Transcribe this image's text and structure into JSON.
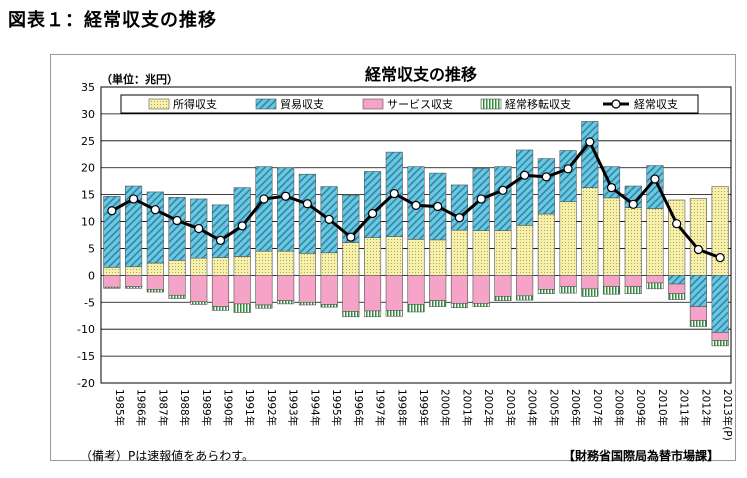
{
  "page": {
    "figure_title": "図表１：経常収支の推移",
    "note": "（備考）Pは速報値をあらわす。",
    "source": "【財務省国際局為替市場課】"
  },
  "chart_data": {
    "type": "bar",
    "title": "経常収支の推移",
    "unit_label": "（単位：兆円）",
    "xlabel": "",
    "ylabel": "",
    "ylim": [
      -20,
      35
    ],
    "yticks": [
      35,
      30,
      25,
      20,
      15,
      10,
      5,
      0,
      -5,
      -10,
      -15,
      -20
    ],
    "grid": true,
    "legend_position": "top",
    "categories": [
      "1985年",
      "1986年",
      "1987年",
      "1988年",
      "1989年",
      "1990年",
      "1991年",
      "1992年",
      "1993年",
      "1994年",
      "1995年",
      "1996年",
      "1997年",
      "1998年",
      "1999年",
      "2000年",
      "2001年",
      "2002年",
      "2003年",
      "2004年",
      "2005年",
      "2006年",
      "2007年",
      "2008年",
      "2009年",
      "2010年",
      "2011年",
      "2012年",
      "2013年(P)"
    ],
    "series": [
      {
        "name": "所得収支",
        "kind": "bar",
        "color": "#f6f0a8",
        "values": [
          1.5,
          1.6,
          2.3,
          2.8,
          3.2,
          3.3,
          3.5,
          4.5,
          4.5,
          4.1,
          4.2,
          6.1,
          7.0,
          7.2,
          6.7,
          6.6,
          8.4,
          8.3,
          8.3,
          9.3,
          11.4,
          13.7,
          16.3,
          14.4,
          12.6,
          12.4,
          14.0,
          14.3,
          16.5
        ]
      },
      {
        "name": "貿易収支",
        "kind": "bar",
        "color": "#6cc8dc",
        "values": [
          13.2,
          15.0,
          13.2,
          11.7,
          11.0,
          9.8,
          12.8,
          15.7,
          15.5,
          14.7,
          12.3,
          8.8,
          12.3,
          15.7,
          13.5,
          12.4,
          8.4,
          11.6,
          11.9,
          14.0,
          10.3,
          9.5,
          12.3,
          5.8,
          4.0,
          8.0,
          -1.6,
          -5.8,
          -10.6
        ]
      },
      {
        "name": "サービス収支",
        "kind": "bar",
        "color": "#f5a4c8",
        "values": [
          -2.2,
          -2.1,
          -2.6,
          -3.7,
          -4.9,
          -5.8,
          -5.3,
          -5.5,
          -4.7,
          -5.0,
          -5.4,
          -6.7,
          -6.6,
          -6.5,
          -5.4,
          -4.7,
          -5.2,
          -5.2,
          -3.9,
          -3.8,
          -2.6,
          -2.1,
          -2.5,
          -2.1,
          -2.1,
          -1.4,
          -1.8,
          -2.6,
          -1.5
        ]
      },
      {
        "name": "経常移転収支",
        "kind": "bar",
        "color": "#2e8c3a",
        "values": [
          -0.2,
          -0.3,
          -0.5,
          -0.6,
          -0.5,
          -0.7,
          -1.6,
          -0.6,
          -0.6,
          -0.5,
          -0.5,
          -1.0,
          -1.1,
          -1.1,
          -1.4,
          -1.1,
          -0.8,
          -0.6,
          -0.8,
          -0.8,
          -0.8,
          -1.2,
          -1.4,
          -1.4,
          -1.3,
          -1.1,
          -1.1,
          -1.1,
          -1.0
        ]
      },
      {
        "name": "経常収支",
        "kind": "line",
        "color": "#000000",
        "values": [
          12.0,
          14.2,
          12.2,
          10.2,
          8.7,
          6.5,
          9.2,
          14.2,
          14.7,
          13.3,
          10.4,
          7.1,
          11.5,
          15.2,
          13.0,
          12.8,
          10.7,
          14.2,
          15.8,
          18.6,
          18.3,
          19.8,
          24.8,
          16.3,
          13.2,
          17.9,
          9.6,
          4.8,
          3.3
        ]
      }
    ]
  }
}
